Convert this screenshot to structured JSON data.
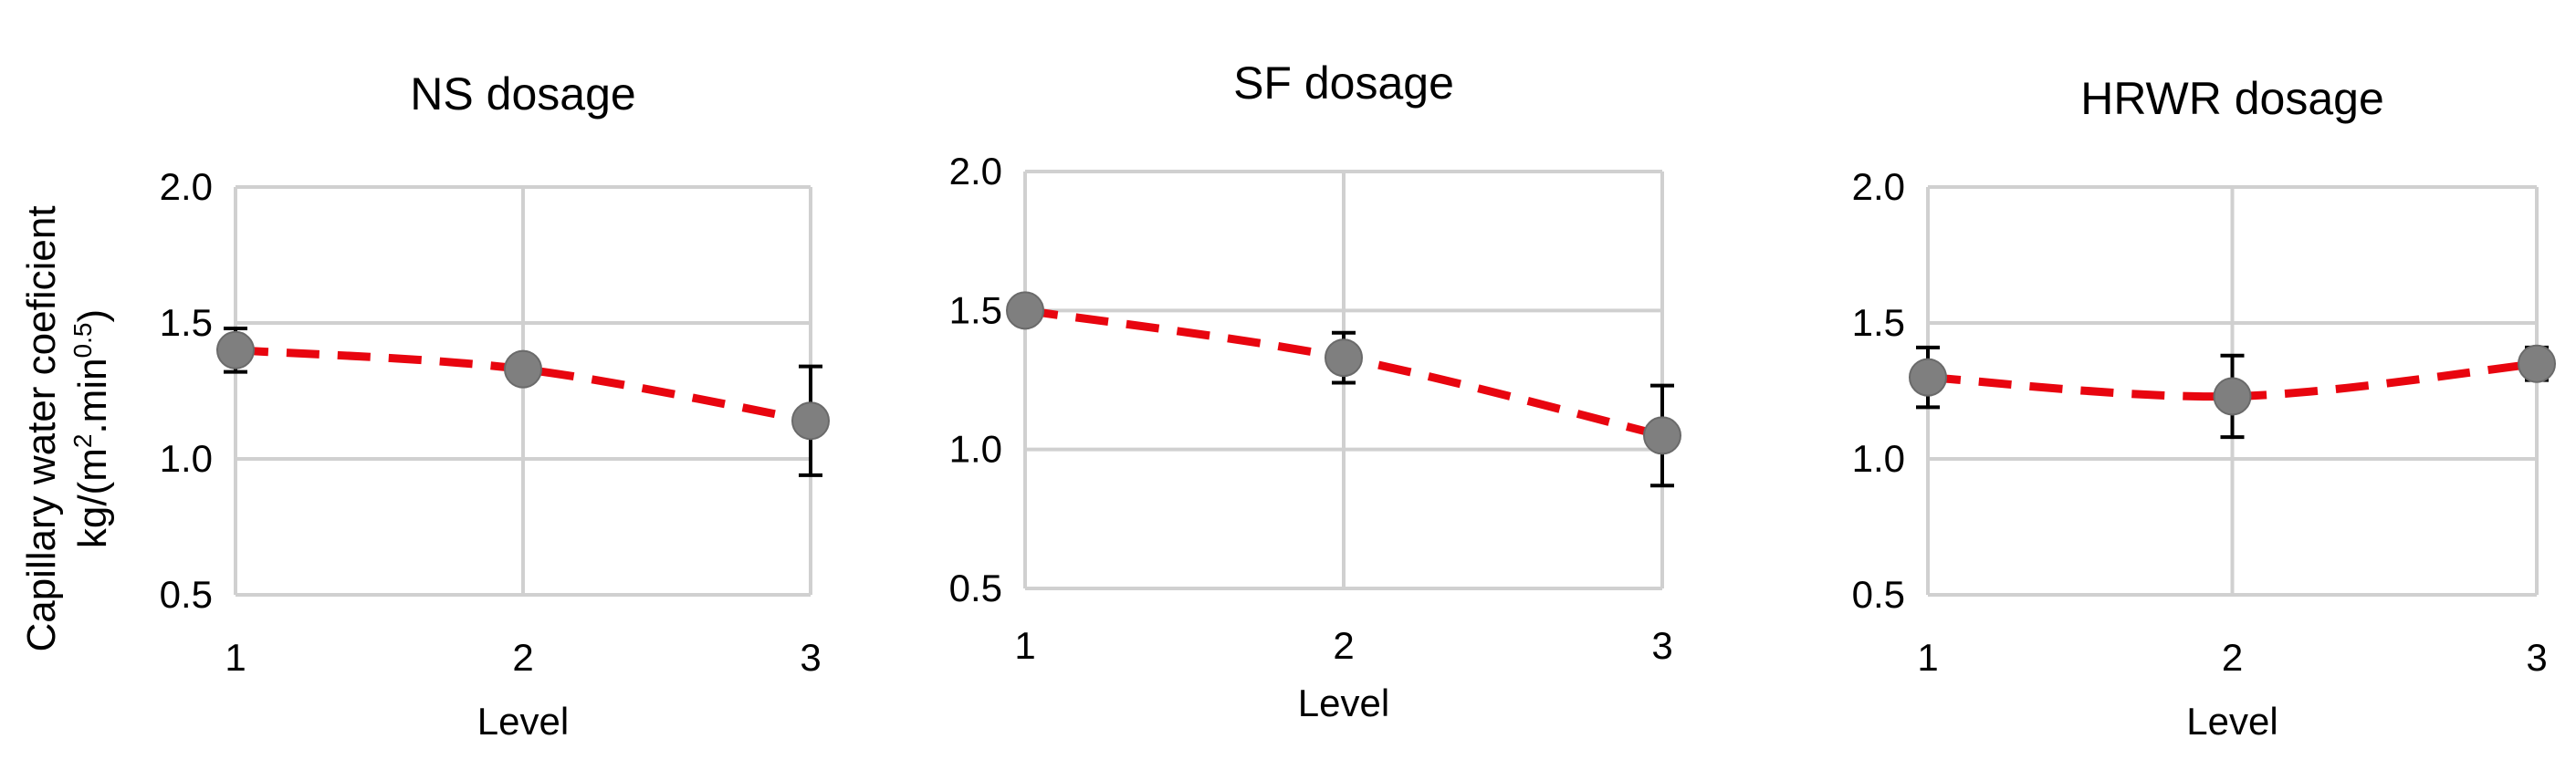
{
  "ylabel_line1": "Capillary water coeficient",
  "ylabel_line2_pre": "kg/(m",
  "ylabel_line2_sup1": "2",
  "ylabel_line2_mid": ".min",
  "ylabel_line2_sup2": "0.5",
  "ylabel_line2_post": ")",
  "chart_data": [
    {
      "type": "line",
      "title": "NS dosage",
      "xlabel": "Level",
      "x": [
        1,
        2,
        3
      ],
      "values": [
        1.4,
        1.33,
        1.14
      ],
      "error": [
        0.08,
        0.04,
        0.2
      ],
      "yticks": [
        "0.5",
        "1.0",
        "1.5",
        "2.0"
      ],
      "xticks": [
        "1",
        "2",
        "3"
      ],
      "ylim": [
        0.5,
        2.0
      ],
      "grid": true,
      "color": "#e8050f",
      "marker_color": "#7f7f7f"
    },
    {
      "type": "line",
      "title": "SF dosage",
      "xlabel": "Level",
      "x": [
        1,
        2,
        3
      ],
      "values": [
        1.5,
        1.33,
        1.05
      ],
      "error": [
        0.03,
        0.09,
        0.18
      ],
      "yticks": [
        "0.5",
        "1.0",
        "1.5",
        "2.0"
      ],
      "xticks": [
        "1",
        "2",
        "3"
      ],
      "ylim": [
        0.5,
        2.0
      ],
      "grid": true,
      "color": "#e8050f",
      "marker_color": "#7f7f7f"
    },
    {
      "type": "line",
      "title": "HRWR dosage",
      "xlabel": "Level",
      "x": [
        1,
        2,
        3
      ],
      "values": [
        1.3,
        1.23,
        1.35
      ],
      "error": [
        0.11,
        0.15,
        0.06
      ],
      "yticks": [
        "0.5",
        "1.0",
        "1.5",
        "2.0"
      ],
      "xticks": [
        "1",
        "2",
        "3"
      ],
      "ylim": [
        0.5,
        2.0
      ],
      "grid": true,
      "color": "#e8050f",
      "marker_color": "#7f7f7f"
    }
  ]
}
